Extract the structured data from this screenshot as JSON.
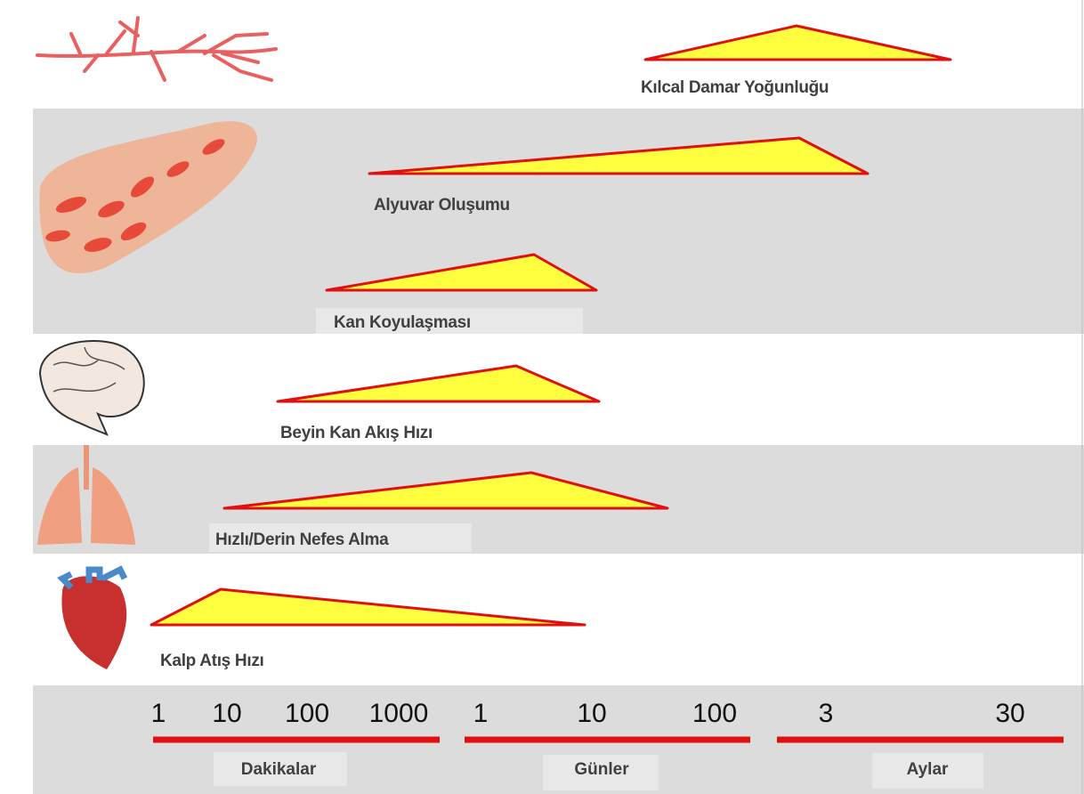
{
  "rows": [
    {
      "label": "Kılcal Damar Yoğunluğu"
    },
    {
      "label": "Alyuvar Oluşumu"
    },
    {
      "label": "Kan Koyulaşması"
    },
    {
      "label": "Beyin Kan Akış Hızı"
    },
    {
      "label": "Hızlı/Derin Nefes Alma"
    },
    {
      "label": "Kalp Atış Hızı"
    }
  ],
  "timeline": {
    "groups": [
      {
        "label": "Dakikalar",
        "ticks": [
          "1",
          "10",
          "100",
          "1000"
        ]
      },
      {
        "label": "Günler",
        "ticks": [
          "1",
          "10",
          "100"
        ]
      },
      {
        "label": "Aylar",
        "ticks": [
          "3",
          "30"
        ]
      }
    ]
  }
}
